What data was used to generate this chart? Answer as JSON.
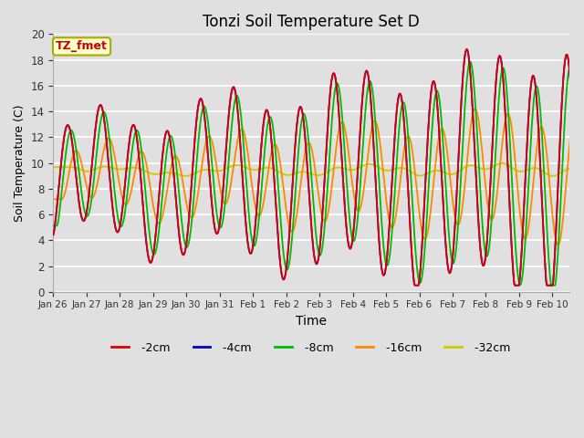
{
  "title": "Tonzi Soil Temperature Set D",
  "xlabel": "Time",
  "ylabel": "Soil Temperature (C)",
  "ylim": [
    0,
    20
  ],
  "bg_color": "#e0e0e0",
  "legend_label": "TZ_fmet",
  "legend_box_color": "#ffffcc",
  "legend_box_edge": "#aaaa00",
  "legend_text_color": "#cc0000",
  "series_colors": {
    "-2cm": "#dd0000",
    "-4cm": "#0000cc",
    "-8cm": "#00bb00",
    "-16cm": "#ff8800",
    "-32cm": "#cccc00"
  },
  "tick_labels": [
    "Jan 26",
    "Jan 27",
    "Jan 28",
    "Jan 29",
    "Jan 30",
    "Jan 31",
    "Feb 1",
    "Feb 2",
    "Feb 3",
    "Feb 4",
    "Feb 5",
    "Feb 6",
    "Feb 7",
    "Feb 8",
    "Feb 9",
    "Feb 10"
  ],
  "figwidth": 6.4,
  "figheight": 4.8,
  "dpi": 100
}
